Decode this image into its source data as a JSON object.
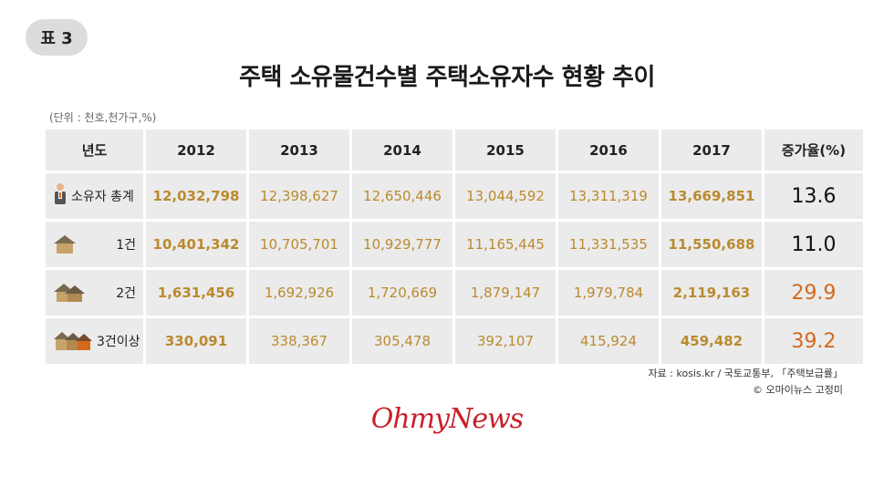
{
  "badge": "표 3",
  "title": "주택 소유물건수별 주택소유자수 현황 추이",
  "unit": "(단위 : 천호,천가구,%)",
  "table": {
    "headers": [
      "년도",
      "2012",
      "2013",
      "2014",
      "2015",
      "2016",
      "2017",
      "증가율(%)"
    ],
    "rows": [
      {
        "label": "소유자 총계",
        "icon": "person-icon",
        "values": [
          "12,032,798",
          "12,398,627",
          "12,650,446",
          "13,044,592",
          "13,311,319",
          "13,669,851"
        ],
        "rate": "13.6"
      },
      {
        "label": "1건",
        "icon": "house-icon",
        "values": [
          "10,401,342",
          "10,705,701",
          "10,929,777",
          "11,165,445",
          "11,331,535",
          "11,550,688"
        ],
        "rate": "11.0"
      },
      {
        "label": "2건",
        "icon": "two-houses-icon",
        "values": [
          "1,631,456",
          "1,692,926",
          "1,720,669",
          "1,879,147",
          "1,979,784",
          "2,119,163"
        ],
        "rate": "29.9"
      },
      {
        "label": "3건이상",
        "icon": "three-houses-icon",
        "values": [
          "330,091",
          "338,367",
          "305,478",
          "392,107",
          "415,924",
          "459,482"
        ],
        "rate": "39.2"
      }
    ]
  },
  "source_line1": "자료 : kosis.kr / 국토교통부, 「주택보급률」",
  "source_line2": "© 오마이뉴스 고정미",
  "logo": "OhmyNews",
  "colors": {
    "value": "#bb8a2e",
    "rate_highlight": "#d46a1c",
    "cell_bg": "#ebebeb",
    "logo": "#c8202a"
  }
}
